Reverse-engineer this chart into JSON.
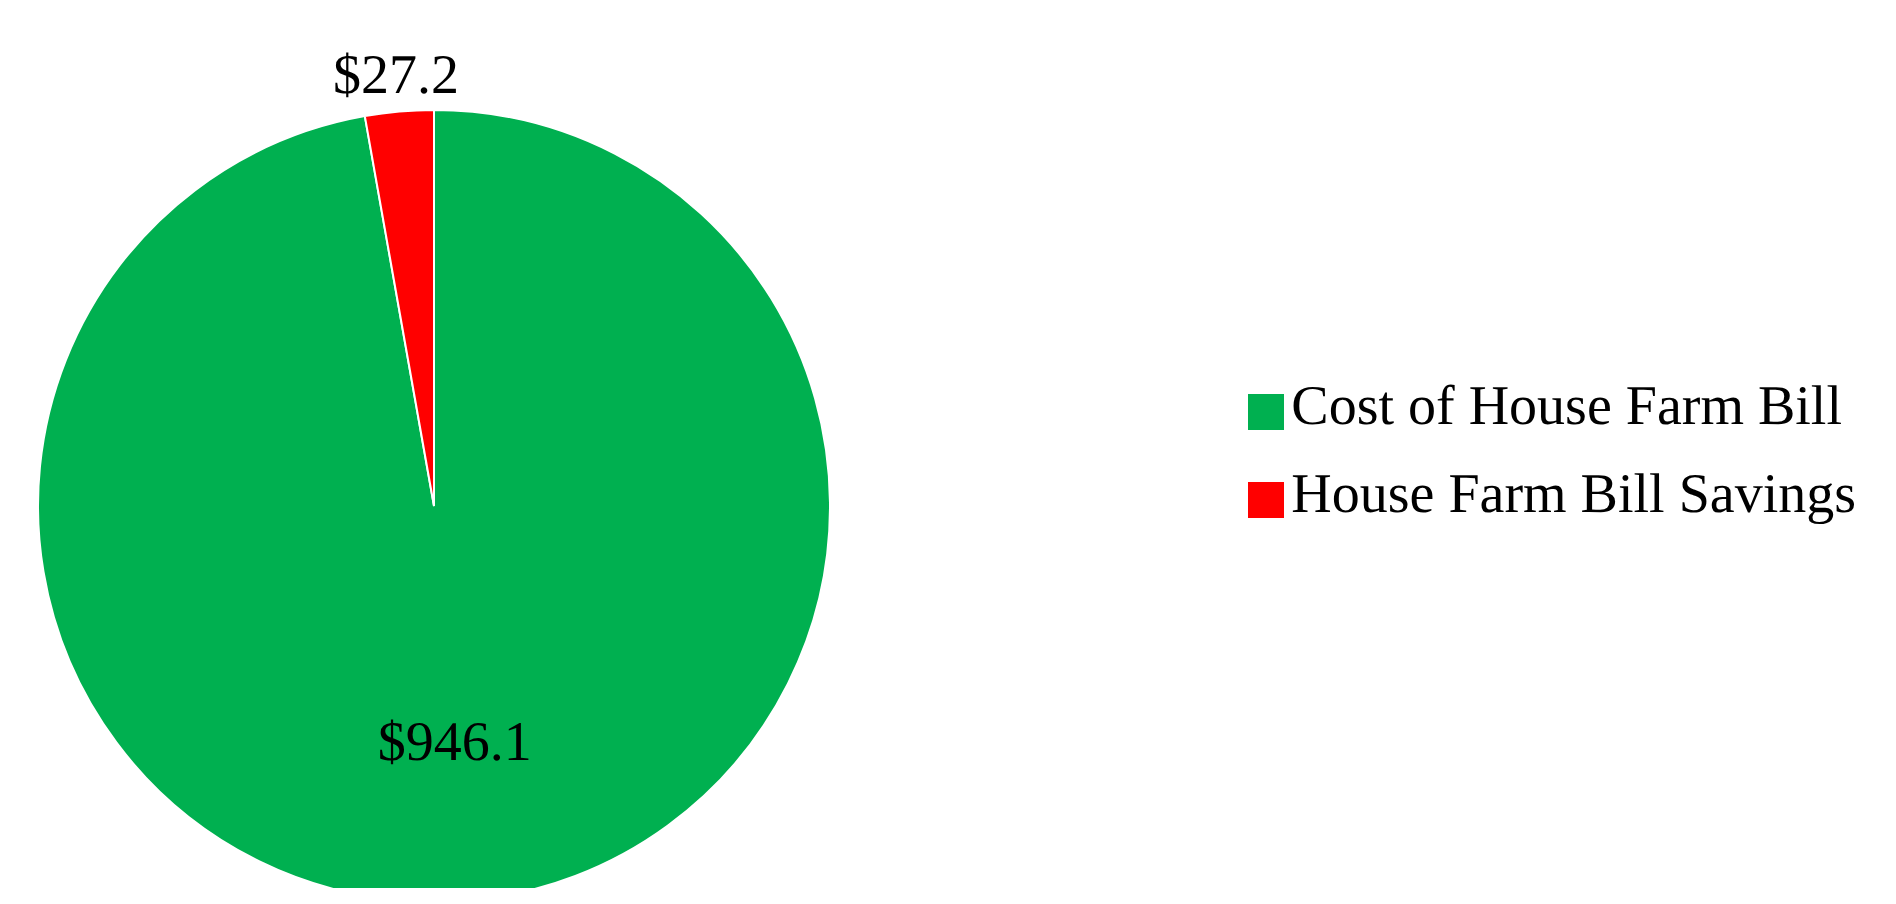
{
  "chart_data": {
    "type": "pie",
    "categories": [
      "Cost of House Farm Bill",
      "House Farm Bill Savings"
    ],
    "values": [
      946.1,
      27.2
    ],
    "colors": [
      "#00b050",
      "#ff0000"
    ],
    "value_labels": [
      "$946.1",
      "$27.2"
    ],
    "legend": "right"
  }
}
